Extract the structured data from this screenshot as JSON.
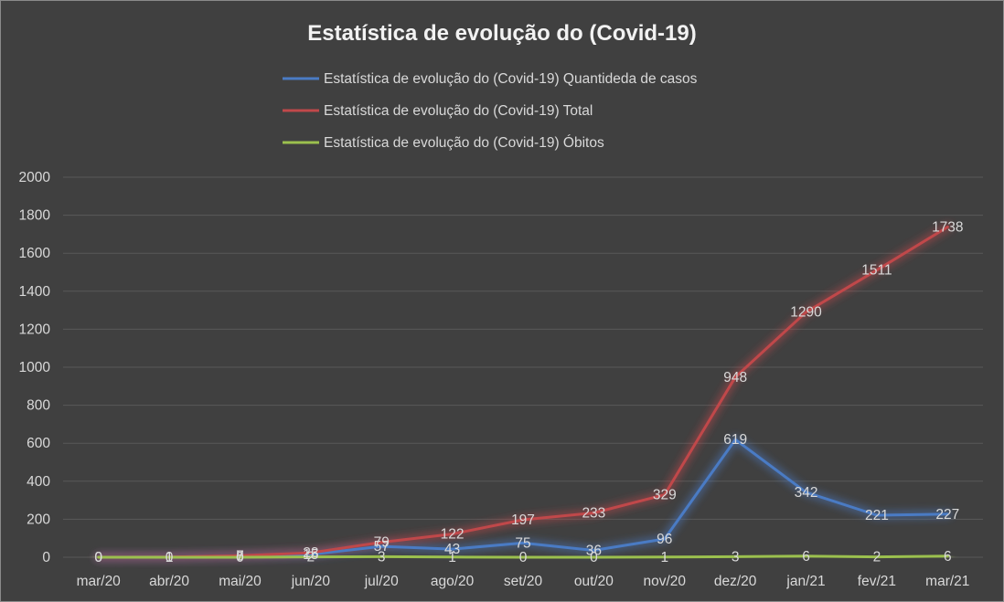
{
  "chart_data": {
    "type": "line",
    "title": "Estatística de evolução do (Covid-19)",
    "categories": [
      "mar/20",
      "abr/20",
      "mai/20",
      "jun/20",
      "jul/20",
      "ago/20",
      "set/20",
      "out/20",
      "nov/20",
      "dez/20",
      "jan/21",
      "fev/21",
      "mar/21"
    ],
    "ylim": [
      0,
      2000
    ],
    "yticks": [
      0,
      200,
      400,
      600,
      800,
      1000,
      1200,
      1400,
      1600,
      1800,
      2000
    ],
    "legend_position": "top",
    "series": [
      {
        "name": "Estatística de evolução do (Covid-19) Quantideda de casos",
        "color": "#4a7bc4",
        "values": [
          0,
          1,
          7,
          15,
          57,
          43,
          75,
          36,
          96,
          619,
          342,
          221,
          227
        ]
      },
      {
        "name": "Estatística de evolução do (Covid-19) Total",
        "color": "#c0484a",
        "values": [
          0,
          1,
          8,
          23,
          79,
          122,
          197,
          233,
          329,
          948,
          1290,
          1511,
          1738
        ]
      },
      {
        "name": "Estatística de evolução do (Covid-19) Óbitos",
        "color": "#9bc04e",
        "values": [
          0,
          0,
          0,
          2,
          3,
          1,
          0,
          0,
          1,
          3,
          6,
          2,
          6
        ]
      }
    ]
  }
}
